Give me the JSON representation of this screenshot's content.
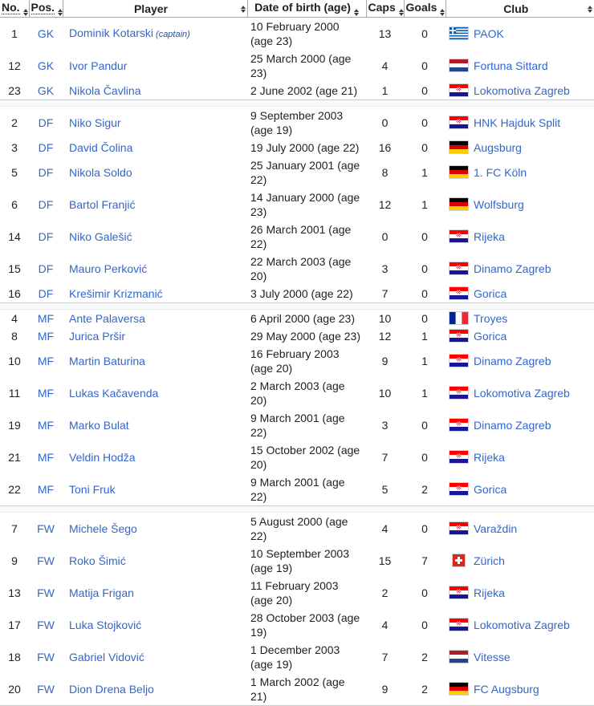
{
  "ui": {
    "link_color": "#3366cc",
    "text_color": "#202122",
    "divider_color": "#f8f9fa",
    "icons": {
      "sort": "up-down-sort-arrows"
    }
  },
  "table": {
    "columns": [
      "No.",
      "Pos.",
      "Player",
      "Date of birth (age)",
      "Caps",
      "Goals",
      "Club"
    ],
    "groups": [
      {
        "position_group": "GK",
        "players": [
          {
            "no": "1",
            "pos": "GK",
            "name": "Dominik Kotarski",
            "captain_note": "(captain)",
            "dob": "10 February 2000 (age 23)",
            "caps": "13",
            "goals": "0",
            "flag": "greece",
            "club": "PAOK"
          },
          {
            "no": "12",
            "pos": "GK",
            "name": "Ivor Pandur",
            "dob": "25 March 2000 (age 23)",
            "caps": "4",
            "goals": "0",
            "flag": "netherlands",
            "club": "Fortuna Sittard"
          },
          {
            "no": "23",
            "pos": "GK",
            "name": "Nikola Čavlina",
            "dob": "2 June 2002 (age 21)",
            "caps": "1",
            "goals": "0",
            "flag": "croatia",
            "club": "Lokomotiva Zagreb"
          }
        ]
      },
      {
        "position_group": "DF",
        "players": [
          {
            "no": "2",
            "pos": "DF",
            "name": "Niko Sigur",
            "dob": "9 September 2003 (age 19)",
            "caps": "0",
            "goals": "0",
            "flag": "croatia",
            "club": "HNK Hajduk Split"
          },
          {
            "no": "3",
            "pos": "DF",
            "name": "David Čolina",
            "dob": "19 July 2000 (age 22)",
            "caps": "16",
            "goals": "0",
            "flag": "germany",
            "club": "Augsburg"
          },
          {
            "no": "5",
            "pos": "DF",
            "name": "Nikola Soldo",
            "dob": "25 January 2001 (age 22)",
            "caps": "8",
            "goals": "1",
            "flag": "germany",
            "club": "1. FC Köln"
          },
          {
            "no": "6",
            "pos": "DF",
            "name": "Bartol Franjić",
            "dob": "14 January 2000 (age 23)",
            "caps": "12",
            "goals": "1",
            "flag": "germany",
            "club": "Wolfsburg"
          },
          {
            "no": "14",
            "pos": "DF",
            "name": "Niko Galešić",
            "dob": "26 March 2001 (age 22)",
            "caps": "0",
            "goals": "0",
            "flag": "croatia",
            "club": "Rijeka"
          },
          {
            "no": "15",
            "pos": "DF",
            "name": "Mauro Perković",
            "dob": "22 March 2003 (age 20)",
            "caps": "3",
            "goals": "0",
            "flag": "croatia",
            "club": "Dinamo Zagreb"
          },
          {
            "no": "16",
            "pos": "DF",
            "name": "Krešimir Krizmanić",
            "dob": "3 July 2000 (age 22)",
            "caps": "7",
            "goals": "0",
            "flag": "croatia",
            "club": "Gorica"
          }
        ]
      },
      {
        "position_group": "MF",
        "players": [
          {
            "no": "4",
            "pos": "MF",
            "name": "Ante Palaversa",
            "dob": "6 April 2000 (age 23)",
            "caps": "10",
            "goals": "0",
            "flag": "france",
            "club": "Troyes"
          },
          {
            "no": "8",
            "pos": "MF",
            "name": "Jurica Pršir",
            "dob": "29 May 2000 (age 23)",
            "caps": "12",
            "goals": "1",
            "flag": "croatia",
            "club": "Gorica"
          },
          {
            "no": "10",
            "pos": "MF",
            "name": "Martin Baturina",
            "dob": "16 February 2003 (age 20)",
            "caps": "9",
            "goals": "1",
            "flag": "croatia",
            "club": "Dinamo Zagreb"
          },
          {
            "no": "11",
            "pos": "MF",
            "name": "Lukas Kačavenda",
            "dob": "2 March 2003 (age 20)",
            "caps": "10",
            "goals": "1",
            "flag": "croatia",
            "club": "Lokomotiva Zagreb"
          },
          {
            "no": "19",
            "pos": "MF",
            "name": "Marko Bulat",
            "dob": "9 March 2001 (age 22)",
            "caps": "3",
            "goals": "0",
            "flag": "croatia",
            "club": "Dinamo Zagreb"
          },
          {
            "no": "21",
            "pos": "MF",
            "name": "Veldin Hodža",
            "dob": "15 October 2002 (age 20)",
            "caps": "7",
            "goals": "0",
            "flag": "croatia",
            "club": "Rijeka"
          },
          {
            "no": "22",
            "pos": "MF",
            "name": "Toni Fruk",
            "dob": "9 March 2001 (age 22)",
            "caps": "5",
            "goals": "2",
            "flag": "croatia",
            "club": "Gorica"
          }
        ]
      },
      {
        "position_group": "FW",
        "players": [
          {
            "no": "7",
            "pos": "FW",
            "name": "Michele Šego",
            "dob": "5 August 2000 (age 22)",
            "caps": "4",
            "goals": "0",
            "flag": "croatia",
            "club": "Varaždin"
          },
          {
            "no": "9",
            "pos": "FW",
            "name": "Roko Šimić",
            "dob": "10 September 2003\n(age 19)",
            "caps": "15",
            "goals": "7",
            "flag": "switzerland",
            "club": "Zürich"
          },
          {
            "no": "13",
            "pos": "FW",
            "name": "Matija Frigan",
            "dob": "11 February 2003 (age 20)",
            "caps": "2",
            "goals": "0",
            "flag": "croatia",
            "club": "Rijeka"
          },
          {
            "no": "17",
            "pos": "FW",
            "name": "Luka Stojković",
            "dob": "28 October 2003 (age 19)",
            "caps": "4",
            "goals": "0",
            "flag": "croatia",
            "club": "Lokomotiva Zagreb"
          },
          {
            "no": "18",
            "pos": "FW",
            "name": "Gabriel Vidović",
            "dob": "1 December 2003 (age 19)",
            "caps": "7",
            "goals": "2",
            "flag": "netherlands",
            "club": "Vitesse"
          },
          {
            "no": "20",
            "pos": "FW",
            "name": "Dion Drena Beljo",
            "dob": "1 March 2002 (age 21)",
            "caps": "9",
            "goals": "2",
            "flag": "germany",
            "club": "FC Augsburg"
          }
        ]
      }
    ]
  }
}
